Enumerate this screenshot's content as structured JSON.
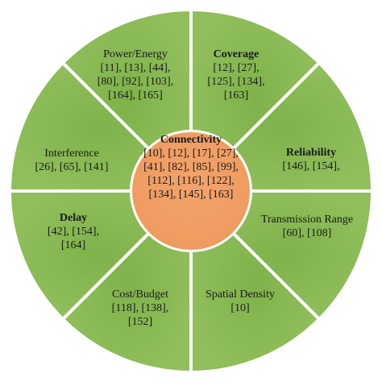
{
  "colors": {
    "segment_fill": "#8fbe5a",
    "segment_divider": "#ffffff",
    "hub_fill": "#ef9b60",
    "text": "#1a1a1a"
  },
  "hub": {
    "title": "Connectivity",
    "refs": [
      "[10], [12], [17], [27],",
      "[41], [82], [85], [99],",
      "[112], [116], [122],",
      "[134], [145], [163]"
    ]
  },
  "segments": [
    {
      "id": "power-energy",
      "title": "Power/Energy",
      "bold": false,
      "refs": [
        "[11], [13], [44],",
        "[80], [92], [103],",
        "[164], [165]"
      ]
    },
    {
      "id": "coverage",
      "title": "Coverage",
      "bold": true,
      "refs": [
        "[12], [27],",
        "[125], [134],",
        "[163]"
      ]
    },
    {
      "id": "reliability",
      "title": "Reliability",
      "bold": true,
      "refs": [
        "[146], [154],"
      ]
    },
    {
      "id": "transmission-range",
      "title": "Transmission Range",
      "bold": false,
      "refs": [
        "[60], [108]"
      ]
    },
    {
      "id": "spatial-density",
      "title": "Spatial Density",
      "bold": false,
      "refs": [
        "[10]"
      ]
    },
    {
      "id": "cost-budget",
      "title": "Cost/Budget",
      "bold": false,
      "refs": [
        "[118], [138],",
        "[152]"
      ]
    },
    {
      "id": "delay",
      "title": "Delay",
      "bold": true,
      "refs": [
        "[42], [154],",
        "[164]"
      ]
    },
    {
      "id": "interference",
      "title": "Interference",
      "bold": false,
      "refs": [
        "[26], [65], [141]"
      ]
    }
  ]
}
